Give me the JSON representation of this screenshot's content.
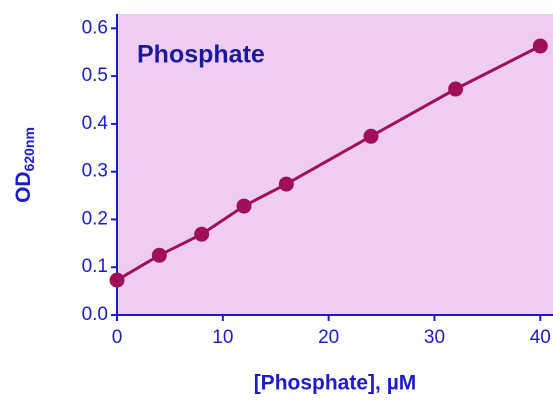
{
  "chart_data": {
    "type": "scatter",
    "title": "Phosphate",
    "xlabel": "[Phosphate], µM",
    "ylabel": "OD",
    "ylabel_subscript": "620nm",
    "x": [
      0,
      4,
      8,
      12,
      16,
      24,
      32,
      40
    ],
    "series": [
      {
        "color": "#a0105a",
        "values": [
          0.073,
          0.125,
          0.169,
          0.228,
          0.274,
          0.374,
          0.473,
          0.563
        ]
      }
    ],
    "xlim": [
      0,
      41.2
    ],
    "ylim": [
      0,
      0.63
    ],
    "xticks": [
      0,
      10,
      20,
      30,
      40
    ],
    "yticks": [
      {
        "value": 0,
        "label": "0.0"
      },
      0.1,
      0.2,
      0.3,
      0.4,
      0.5,
      0.6
    ],
    "background": "#efcdf3",
    "axis_color": "#1c1ccc"
  }
}
